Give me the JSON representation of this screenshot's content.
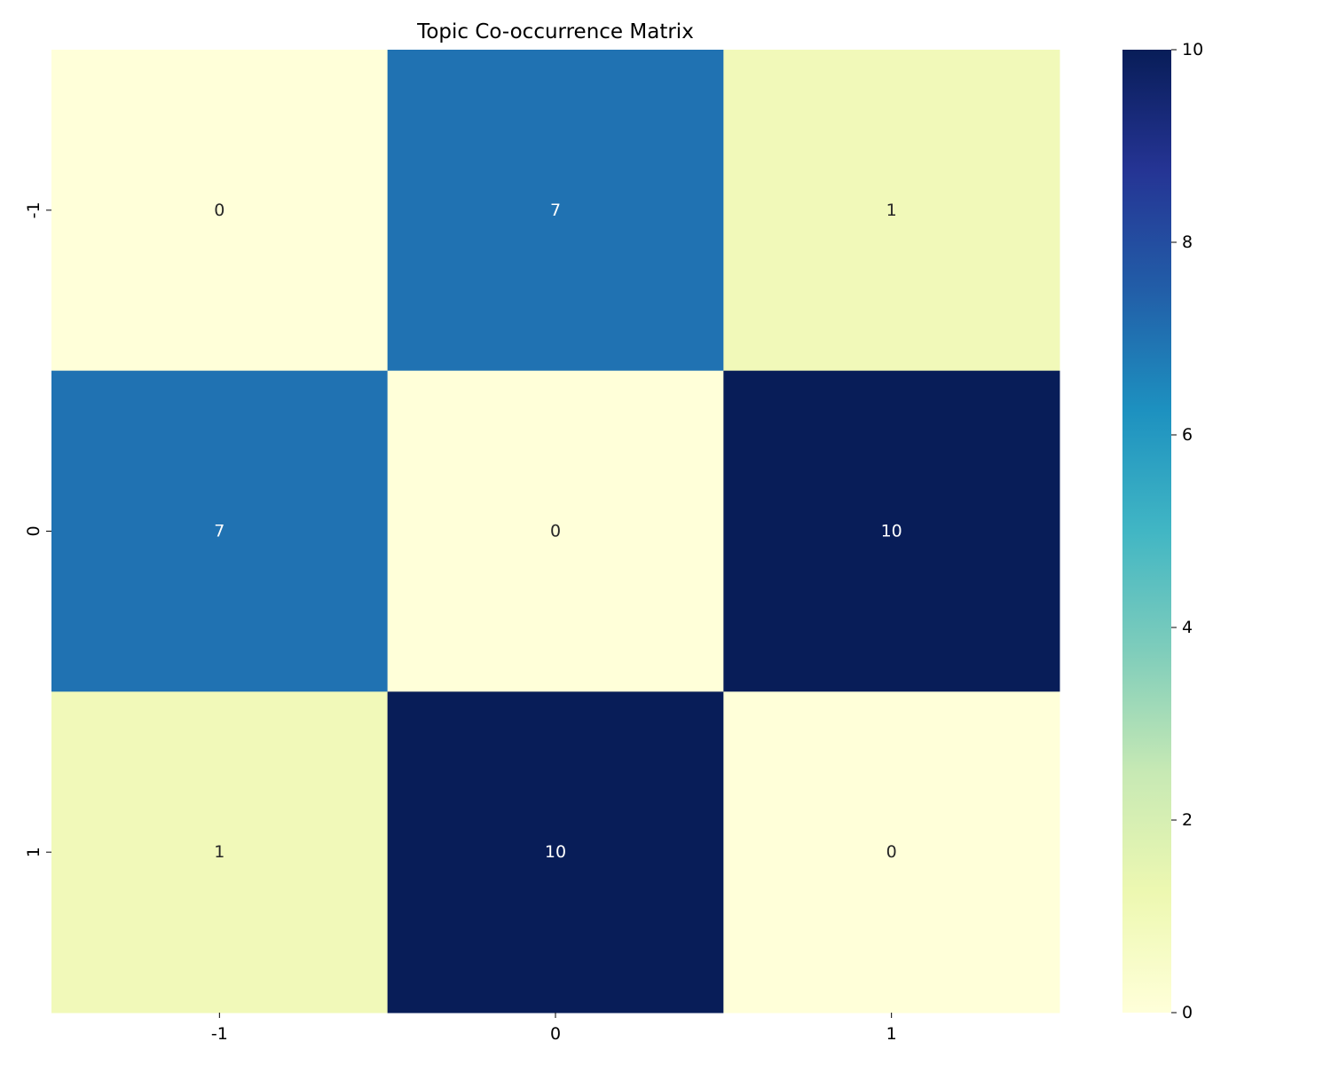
{
  "chart_data": {
    "type": "heatmap",
    "title": "Topic Co-occurrence Matrix",
    "xlabel": "",
    "ylabel": "",
    "x_categories": [
      "-1",
      "0",
      "1"
    ],
    "y_categories": [
      "-1",
      "0",
      "1"
    ],
    "values": [
      [
        0,
        7,
        1
      ],
      [
        7,
        0,
        10
      ],
      [
        1,
        10,
        0
      ]
    ],
    "annotations": true,
    "colormap": "YlGnBu",
    "colormap_stops": [
      "#ffffd9",
      "#edf8b1",
      "#c7e9b4",
      "#7fcdbb",
      "#41b6c4",
      "#1d91c0",
      "#225ea8",
      "#253494",
      "#081d58"
    ],
    "annotation_colors": {
      "light_cells": "#262626",
      "dark_cells": "#ffffff"
    },
    "colorbar": {
      "range": [
        0,
        10
      ],
      "ticks": [
        0,
        2,
        4,
        6,
        8,
        10
      ]
    },
    "grid": false,
    "legend": "colorbar-right"
  }
}
